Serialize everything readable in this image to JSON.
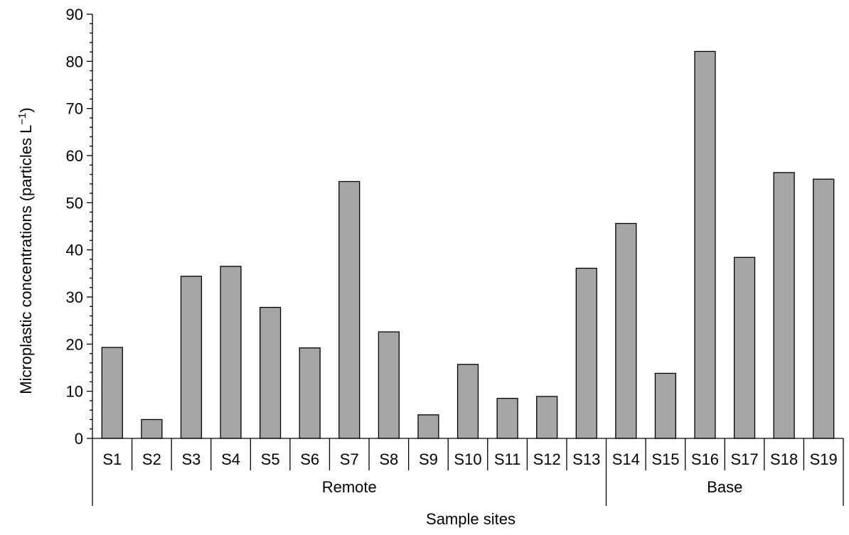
{
  "chart_data": {
    "type": "bar",
    "xlabel": "Sample sites",
    "ylabel": "Microplastic concentrations (particles L",
    "ylabel_sup": "−1",
    "ylabel_close": ")",
    "ylim": [
      0,
      90
    ],
    "yticks": [
      0,
      10,
      20,
      30,
      40,
      50,
      60,
      70,
      80,
      90
    ],
    "categories": [
      "S1",
      "S2",
      "S3",
      "S4",
      "S5",
      "S6",
      "S7",
      "S8",
      "S9",
      "S10",
      "S11",
      "S12",
      "S13",
      "S14",
      "S15",
      "S16",
      "S17",
      "S18",
      "S19"
    ],
    "values": [
      19.3,
      4.0,
      34.4,
      36.5,
      27.8,
      19.2,
      54.5,
      22.6,
      5.0,
      15.7,
      8.5,
      8.9,
      36.1,
      45.6,
      13.8,
      82.1,
      38.4,
      56.4,
      55.0
    ],
    "groups": [
      {
        "label": "Remote",
        "count": 13
      },
      {
        "label": "Base",
        "count": 6
      }
    ],
    "grid": false,
    "legend": "none",
    "colors": {
      "bar_fill": "#a6a6a6",
      "bar_stroke": "#000000"
    }
  }
}
